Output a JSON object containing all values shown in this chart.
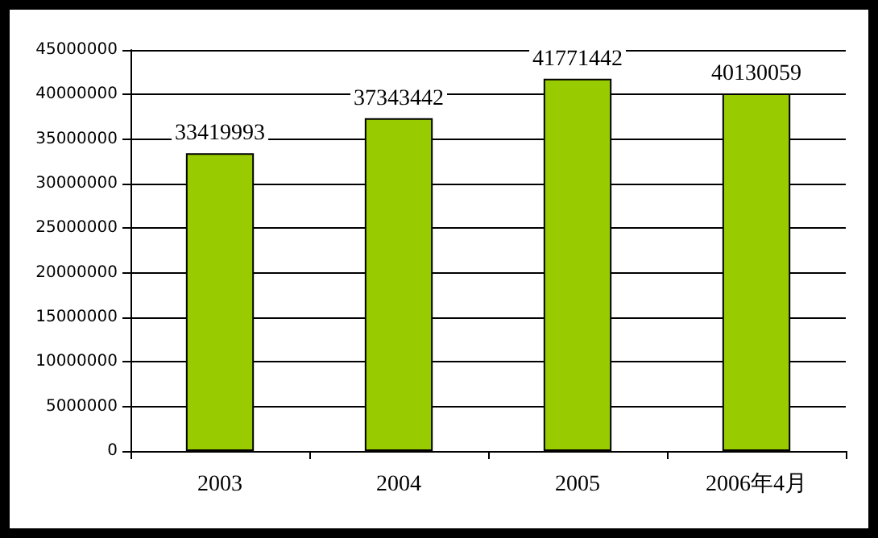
{
  "chart_data": {
    "type": "bar",
    "categories": [
      "2003",
      "2004",
      "2005",
      "2006年4月"
    ],
    "values": [
      33419993,
      37343442,
      41771442,
      40130059
    ],
    "color": "#99cc00",
    "ylim": [
      0,
      45000000
    ],
    "yticks": [
      0,
      5000000,
      10000000,
      15000000,
      20000000,
      25000000,
      30000000,
      35000000,
      40000000,
      45000000
    ],
    "grid": "y",
    "data_labels": true
  }
}
